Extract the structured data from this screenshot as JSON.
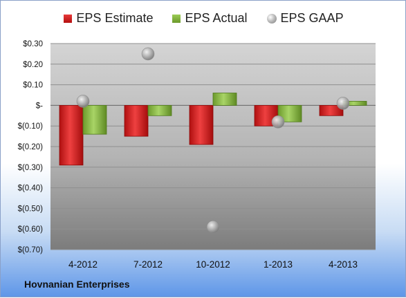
{
  "legend": {
    "estimate": "EPS Estimate",
    "actual": "EPS Actual",
    "gaap": "EPS GAAP"
  },
  "company": "Hovnanian Enterprises",
  "colors": {
    "estimate": "#cc1f1f",
    "actual": "#86b341",
    "gaap": "#a8a8a8"
  },
  "chart_data": {
    "type": "bar",
    "categories": [
      "4-2012",
      "7-2012",
      "10-2012",
      "1-2013",
      "4-2013"
    ],
    "series": [
      {
        "name": "EPS Estimate",
        "values": [
          -0.29,
          -0.15,
          -0.19,
          -0.1,
          -0.05
        ]
      },
      {
        "name": "EPS Actual",
        "values": [
          -0.14,
          -0.05,
          0.06,
          -0.08,
          0.02
        ]
      },
      {
        "name": "EPS GAAP",
        "marker": "circle",
        "values": [
          0.02,
          0.25,
          -0.59,
          -0.08,
          0.01
        ]
      }
    ],
    "ylim": [
      -0.7,
      0.3
    ],
    "yticks": [
      0.3,
      0.2,
      0.1,
      0.0,
      -0.1,
      -0.2,
      -0.3,
      -0.4,
      -0.5,
      -0.6,
      -0.7
    ],
    "ytick_labels": [
      "$0.30",
      "$0.20",
      "$0.10",
      "$-",
      "$(0.10)",
      "$(0.20)",
      "$(0.30)",
      "$(0.40)",
      "$(0.50)",
      "$(0.60)",
      "$(0.70)"
    ],
    "grid": true,
    "legend_position": "top"
  }
}
